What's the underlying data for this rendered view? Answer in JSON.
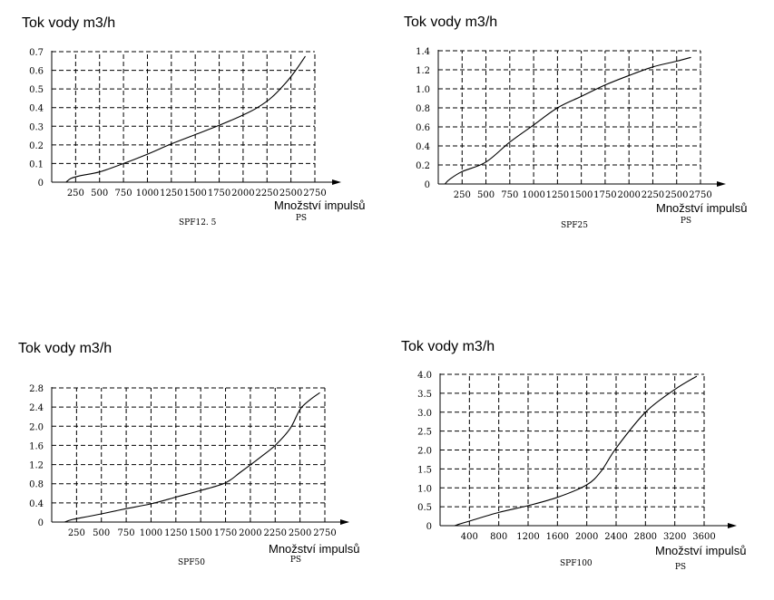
{
  "chart_data": [
    {
      "type": "line",
      "ylabel": "Tok vody m3/h",
      "xlabel": "Množství impulsů",
      "unit_label": "PS",
      "caption": "SPF12. 5",
      "x_ticks": [
        "250",
        "500",
        "750",
        "1000",
        "1250",
        "1500",
        "1750",
        "2000",
        "2250",
        "2500",
        "2750"
      ],
      "y_ticks": [
        "0",
        "0.1",
        "0.2",
        "0.3",
        "0.4",
        "0.5",
        "0.6",
        "0.7"
      ],
      "xlim": [
        0,
        2750
      ],
      "ylim": [
        0,
        0.7
      ],
      "x": [
        150,
        200,
        300,
        500,
        750,
        1000,
        1250,
        1500,
        1750,
        2000,
        2150,
        2300,
        2450,
        2550,
        2650
      ],
      "y": [
        0.0,
        0.02,
        0.035,
        0.055,
        0.1,
        0.15,
        0.205,
        0.255,
        0.305,
        0.36,
        0.4,
        0.455,
        0.535,
        0.6,
        0.675
      ]
    },
    {
      "type": "line",
      "ylabel": "Tok vody m3/h",
      "xlabel": "Množství impulsů",
      "unit_label": "PS",
      "caption": "SPF25",
      "x_ticks": [
        "250",
        "500",
        "750",
        "1000",
        "1250",
        "1500",
        "1750",
        "2000",
        "2250",
        "2500",
        "2750"
      ],
      "y_ticks": [
        "0",
        "0.2",
        "0.4",
        "0.6",
        "0.8",
        "1.0",
        "1.2",
        "1.4"
      ],
      "xlim": [
        0,
        2750
      ],
      "ylim": [
        0,
        1.4
      ],
      "x": [
        70,
        120,
        250,
        500,
        750,
        1000,
        1250,
        1500,
        1750,
        2000,
        2250,
        2500,
        2650
      ],
      "y": [
        0.0,
        0.05,
        0.13,
        0.23,
        0.44,
        0.62,
        0.8,
        0.92,
        1.04,
        1.14,
        1.23,
        1.29,
        1.33
      ]
    },
    {
      "type": "line",
      "ylabel": "Tok vody m3/h",
      "xlabel": "Množství impulsů",
      "unit_label": "PS",
      "caption": "SPF50",
      "x_ticks": [
        "250",
        "500",
        "750",
        "1000",
        "1250",
        "1500",
        "1750",
        "2000",
        "2250",
        "2500",
        "2750"
      ],
      "y_ticks": [
        "0",
        "0.4",
        "0.8",
        "1.2",
        "1.6",
        "2.0",
        "2.4",
        "2.8"
      ],
      "xlim": [
        0,
        2750
      ],
      "ylim": [
        0,
        2.8
      ],
      "x": [
        130,
        200,
        300,
        500,
        750,
        1000,
        1250,
        1500,
        1750,
        1900,
        2100,
        2250,
        2400,
        2500,
        2600,
        2700
      ],
      "y": [
        0.0,
        0.05,
        0.09,
        0.17,
        0.28,
        0.38,
        0.52,
        0.66,
        0.82,
        1.04,
        1.35,
        1.6,
        1.95,
        2.35,
        2.55,
        2.7
      ]
    },
    {
      "type": "line",
      "ylabel": "Tok vody m3/h",
      "xlabel": "Množství impulsů",
      "unit_label": "PS",
      "caption": "SPF100",
      "x_ticks": [
        "400",
        "800",
        "1200",
        "1600",
        "2000",
        "2400",
        "2800",
        "3200",
        "3600"
      ],
      "y_ticks": [
        "0",
        "0.5",
        "1.0",
        "1.5",
        "2.0",
        "2.5",
        "3.0",
        "3.5",
        "4.0"
      ],
      "xlim": [
        0,
        3600
      ],
      "ylim": [
        0,
        4.0
      ],
      "x": [
        200,
        260,
        400,
        800,
        1200,
        1600,
        2000,
        2200,
        2400,
        2800,
        3200,
        3500
      ],
      "y": [
        0.0,
        0.04,
        0.12,
        0.35,
        0.53,
        0.75,
        1.08,
        1.45,
        2.05,
        3.0,
        3.6,
        3.95
      ]
    }
  ]
}
